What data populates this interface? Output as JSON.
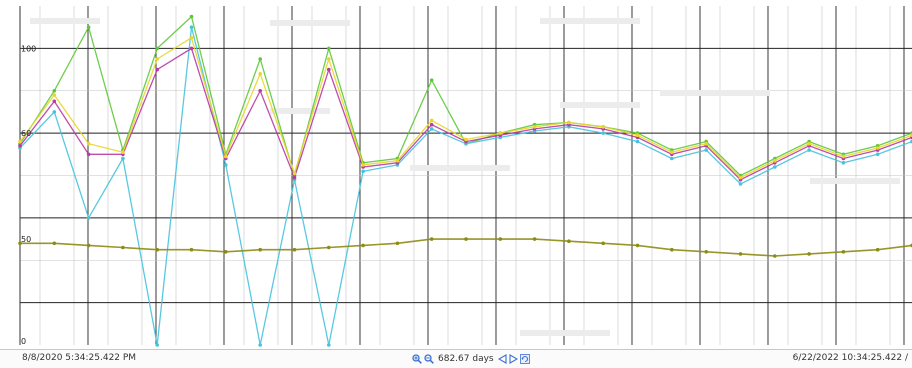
{
  "colors": {
    "background": "#ffffff",
    "grid_major": "#222222",
    "grid_minor": "#c4c4c4",
    "series_green": "#5fc83a",
    "series_cyan": "#46c3dd",
    "series_magenta": "#b83aa4",
    "series_yellow": "#e8d62a",
    "series_olive": "#8d8b13",
    "status_icon": "#3b6fd1"
  },
  "status_bar": {
    "start_time": "8/8/2020 5:34:25.422 PM",
    "span_label": "682.67 days",
    "end_time": "6/22/2022 10:34:25.422 /"
  },
  "icons": [
    "zoom-in-icon",
    "zoom-out-icon",
    "scroll-left-icon",
    "scroll-right-icon",
    "refresh-icon"
  ],
  "y_axis_labels": [
    "100",
    "60",
    "50",
    "0"
  ],
  "chart_data": {
    "type": "line",
    "x_range": [
      "8/8/2020 5:34:25.422 PM",
      "6/22/2022 10:34:25.422 AM"
    ],
    "span_days": 682.67,
    "grid": true,
    "series": [
      {
        "color": "#5fc83a",
        "values": [
          95,
          120,
          150,
          92,
          140,
          155,
          90,
          135,
          80,
          140,
          86,
          88,
          125,
          95,
          100,
          104,
          105,
          103,
          100,
          92,
          96,
          80,
          88,
          96,
          90,
          94,
          100
        ]
      },
      {
        "color": "#46c3dd",
        "values": [
          93,
          110,
          60,
          88,
          0,
          150,
          85,
          0,
          78,
          0,
          82,
          85,
          102,
          95,
          98,
          101,
          103,
          100,
          96,
          88,
          92,
          76,
          84,
          92,
          86,
          90,
          96
        ]
      },
      {
        "color": "#b83aa4",
        "values": [
          94,
          115,
          90,
          90,
          130,
          140,
          88,
          120,
          79,
          130,
          84,
          86,
          104,
          96,
          99,
          102,
          104,
          102,
          98,
          90,
          94,
          78,
          86,
          94,
          88,
          92,
          98
        ]
      },
      {
        "color": "#e8d62a",
        "values": [
          96,
          118,
          95,
          91,
          135,
          145,
          89,
          128,
          81,
          135,
          85,
          87,
          106,
          97,
          100,
          103,
          105,
          103,
          99,
          91,
          95,
          79,
          87,
          95,
          89,
          93,
          99
        ]
      },
      {
        "color": "#8d8b13",
        "values": [
          48,
          48,
          47,
          46,
          45,
          45,
          44,
          45,
          45,
          46,
          47,
          48,
          50,
          50,
          50,
          50,
          49,
          48,
          47,
          45,
          44,
          43,
          42,
          43,
          44,
          45,
          47
        ]
      }
    ]
  }
}
